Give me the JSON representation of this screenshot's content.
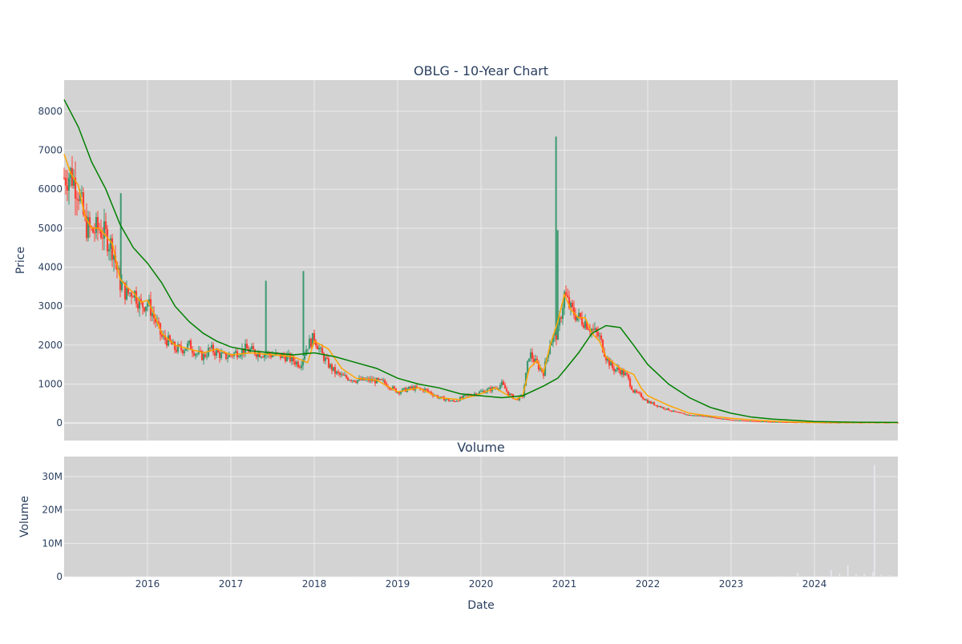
{
  "chart_data": [
    {
      "type": "candlestick",
      "title": "OBLG - 10-Year Chart",
      "ylabel": "Price",
      "xlabel": "",
      "xlim": [
        2015.0,
        2025.0
      ],
      "ylim": [
        -450,
        8800
      ],
      "y_ticks": [
        0,
        1000,
        2000,
        3000,
        4000,
        5000,
        6000,
        7000,
        8000
      ],
      "x_ticks": [
        2016,
        2017,
        2018,
        2019,
        2020,
        2021,
        2022,
        2023,
        2024
      ],
      "x_tick_labels": [
        "2016",
        "2017",
        "2018",
        "2019",
        "2020",
        "2021",
        "2022",
        "2023",
        "2024"
      ],
      "grid": true,
      "colors": {
        "increasing": "#3d9970",
        "decreasing": "#ff4136",
        "short_ma": "#ffa500",
        "long_ma": "#008000",
        "plot_bg": "#d3d3d3",
        "grid": "#ebebeb"
      },
      "close_series": {
        "x": [
          2015.0,
          2015.08,
          2015.17,
          2015.25,
          2015.33,
          2015.42,
          2015.5,
          2015.58,
          2015.67,
          2015.75,
          2015.83,
          2015.92,
          2016.0,
          2016.08,
          2016.17,
          2016.25,
          2016.33,
          2016.42,
          2016.5,
          2016.58,
          2016.67,
          2016.75,
          2016.83,
          2016.92,
          2017.0,
          2017.17,
          2017.33,
          2017.5,
          2017.67,
          2017.83,
          2017.92,
          2018.0,
          2018.08,
          2018.17,
          2018.25,
          2018.33,
          2018.5,
          2018.67,
          2018.83,
          2019.0,
          2019.17,
          2019.33,
          2019.5,
          2019.67,
          2019.83,
          2020.0,
          2020.17,
          2020.25,
          2020.33,
          2020.42,
          2020.5,
          2020.58,
          2020.67,
          2020.75,
          2020.83,
          2020.92,
          2021.0,
          2021.08,
          2021.17,
          2021.25,
          2021.33,
          2021.42,
          2021.5,
          2021.58,
          2021.67,
          2021.75,
          2021.83,
          2021.92,
          2022.0,
          2022.17,
          2022.33,
          2022.5,
          2022.67,
          2022.83,
          2023.0,
          2023.25,
          2023.5,
          2023.75,
          2024.0,
          2024.25,
          2024.5,
          2024.75,
          2025.0
        ],
        "values": [
          6300,
          6400,
          6000,
          5100,
          4900,
          5000,
          4800,
          4500,
          3600,
          3300,
          3400,
          3000,
          3100,
          2700,
          2200,
          2100,
          1900,
          1900,
          2000,
          1800,
          1700,
          1900,
          1800,
          1700,
          1750,
          1900,
          1800,
          1750,
          1700,
          1500,
          2000,
          2200,
          1800,
          1500,
          1300,
          1200,
          1100,
          1100,
          1050,
          800,
          900,
          850,
          650,
          550,
          700,
          800,
          900,
          1000,
          750,
          600,
          700,
          1800,
          1500,
          1300,
          2100,
          2300,
          3300,
          2900,
          2700,
          2600,
          2400,
          2200,
          1700,
          1400,
          1350,
          1200,
          800,
          700,
          550,
          400,
          280,
          200,
          180,
          130,
          80,
          50,
          30,
          20,
          15,
          10,
          10,
          10,
          10
        ]
      },
      "spikes": [
        {
          "x": 2015.68,
          "high": 5900
        },
        {
          "x": 2017.42,
          "high": 3650
        },
        {
          "x": 2017.87,
          "high": 3900
        },
        {
          "x": 2020.9,
          "high": 7350
        },
        {
          "x": 2020.92,
          "high": 4950
        }
      ],
      "moving_averages": [
        {
          "x": [
            2015.0,
            2015.08,
            2015.17,
            2015.25,
            2015.33,
            2015.42,
            2015.5,
            2015.58,
            2015.67,
            2015.75,
            2015.83,
            2015.92,
            2016.0,
            2016.08,
            2016.17,
            2016.33,
            2016.5,
            2016.67,
            2016.83,
            2017.0,
            2017.25,
            2017.5,
            2017.75,
            2017.92,
            2018.0,
            2018.17,
            2018.33,
            2018.5,
            2018.75,
            2019.0,
            2019.25,
            2019.5,
            2019.75,
            2020.0,
            2020.17,
            2020.33,
            2020.42,
            2020.5,
            2020.58,
            2020.67,
            2020.75,
            2020.83,
            2020.92,
            2021.0,
            2021.08,
            2021.17,
            2021.25,
            2021.33,
            2021.42,
            2021.5,
            2021.67,
            2021.83,
            2021.92,
            2022.0,
            2022.25,
            2022.5,
            2022.75,
            2023.0,
            2023.25,
            2023.5,
            2023.75,
            2024.0,
            2024.5,
            2025.0
          ],
          "values": [
            6900,
            6400,
            6100,
            5300,
            5000,
            5000,
            4800,
            4600,
            3700,
            3500,
            3350,
            3100,
            3150,
            2800,
            2300,
            2000,
            1900,
            1800,
            1900,
            1750,
            1800,
            1750,
            1700,
            1550,
            2100,
            1900,
            1400,
            1150,
            1100,
            800,
            900,
            650,
            600,
            750,
            900,
            700,
            600,
            700,
            1400,
            1600,
            1300,
            2000,
            2600,
            3300,
            2900,
            2700,
            2700,
            2300,
            2100,
            1700,
            1400,
            1250,
            900,
            700,
            450,
            250,
            180,
            120,
            80,
            50,
            25,
            15,
            10,
            10
          ]
        },
        {
          "x": [
            2015.0,
            2015.17,
            2015.33,
            2015.5,
            2015.67,
            2015.83,
            2016.0,
            2016.17,
            2016.33,
            2016.5,
            2016.67,
            2016.83,
            2017.0,
            2017.25,
            2017.5,
            2017.75,
            2018.0,
            2018.25,
            2018.5,
            2018.75,
            2019.0,
            2019.25,
            2019.5,
            2019.75,
            2020.0,
            2020.25,
            2020.5,
            2020.75,
            2020.92,
            2021.0,
            2021.17,
            2021.33,
            2021.5,
            2021.67,
            2021.83,
            2022.0,
            2022.25,
            2022.5,
            2022.75,
            2023.0,
            2023.25,
            2023.5,
            2023.75,
            2024.0,
            2024.5,
            2025.0
          ],
          "values": [
            8300,
            7600,
            6700,
            6000,
            5100,
            4500,
            4100,
            3600,
            3000,
            2600,
            2300,
            2100,
            1950,
            1850,
            1800,
            1750,
            1800,
            1700,
            1550,
            1400,
            1150,
            1000,
            900,
            750,
            700,
            650,
            700,
            950,
            1150,
            1350,
            1800,
            2300,
            2500,
            2450,
            2000,
            1500,
            1000,
            650,
            400,
            250,
            150,
            100,
            70,
            40,
            20,
            15
          ]
        }
      ]
    },
    {
      "type": "bar",
      "title": "Volume",
      "ylabel": "Volume",
      "xlabel": "Date",
      "ylim": [
        0,
        36000000
      ],
      "y_ticks": [
        0,
        10000000,
        20000000,
        30000000
      ],
      "y_tick_labels": [
        "0",
        "10M",
        "20M",
        "30M"
      ],
      "x_ticks": [
        2016,
        2017,
        2018,
        2019,
        2020,
        2021,
        2022,
        2023,
        2024
      ],
      "x_tick_labels": [
        "2016",
        "2017",
        "2018",
        "2019",
        "2020",
        "2021",
        "2022",
        "2023",
        "2024"
      ],
      "x": [
        2015.5,
        2016.5,
        2017.5,
        2018.5,
        2019.5,
        2020.5,
        2021.0,
        2022.0,
        2023.0,
        2023.6,
        2023.8,
        2024.0,
        2024.2,
        2024.3,
        2024.4,
        2024.5,
        2024.6,
        2024.7,
        2024.72,
        2024.8,
        2024.9
      ],
      "values": [
        20000,
        20000,
        20000,
        20000,
        20000,
        30000,
        50000,
        30000,
        100000,
        300000,
        1200000,
        600000,
        2000000,
        900000,
        3500000,
        700000,
        800000,
        1500000,
        33500000,
        600000,
        500000
      ]
    }
  ]
}
